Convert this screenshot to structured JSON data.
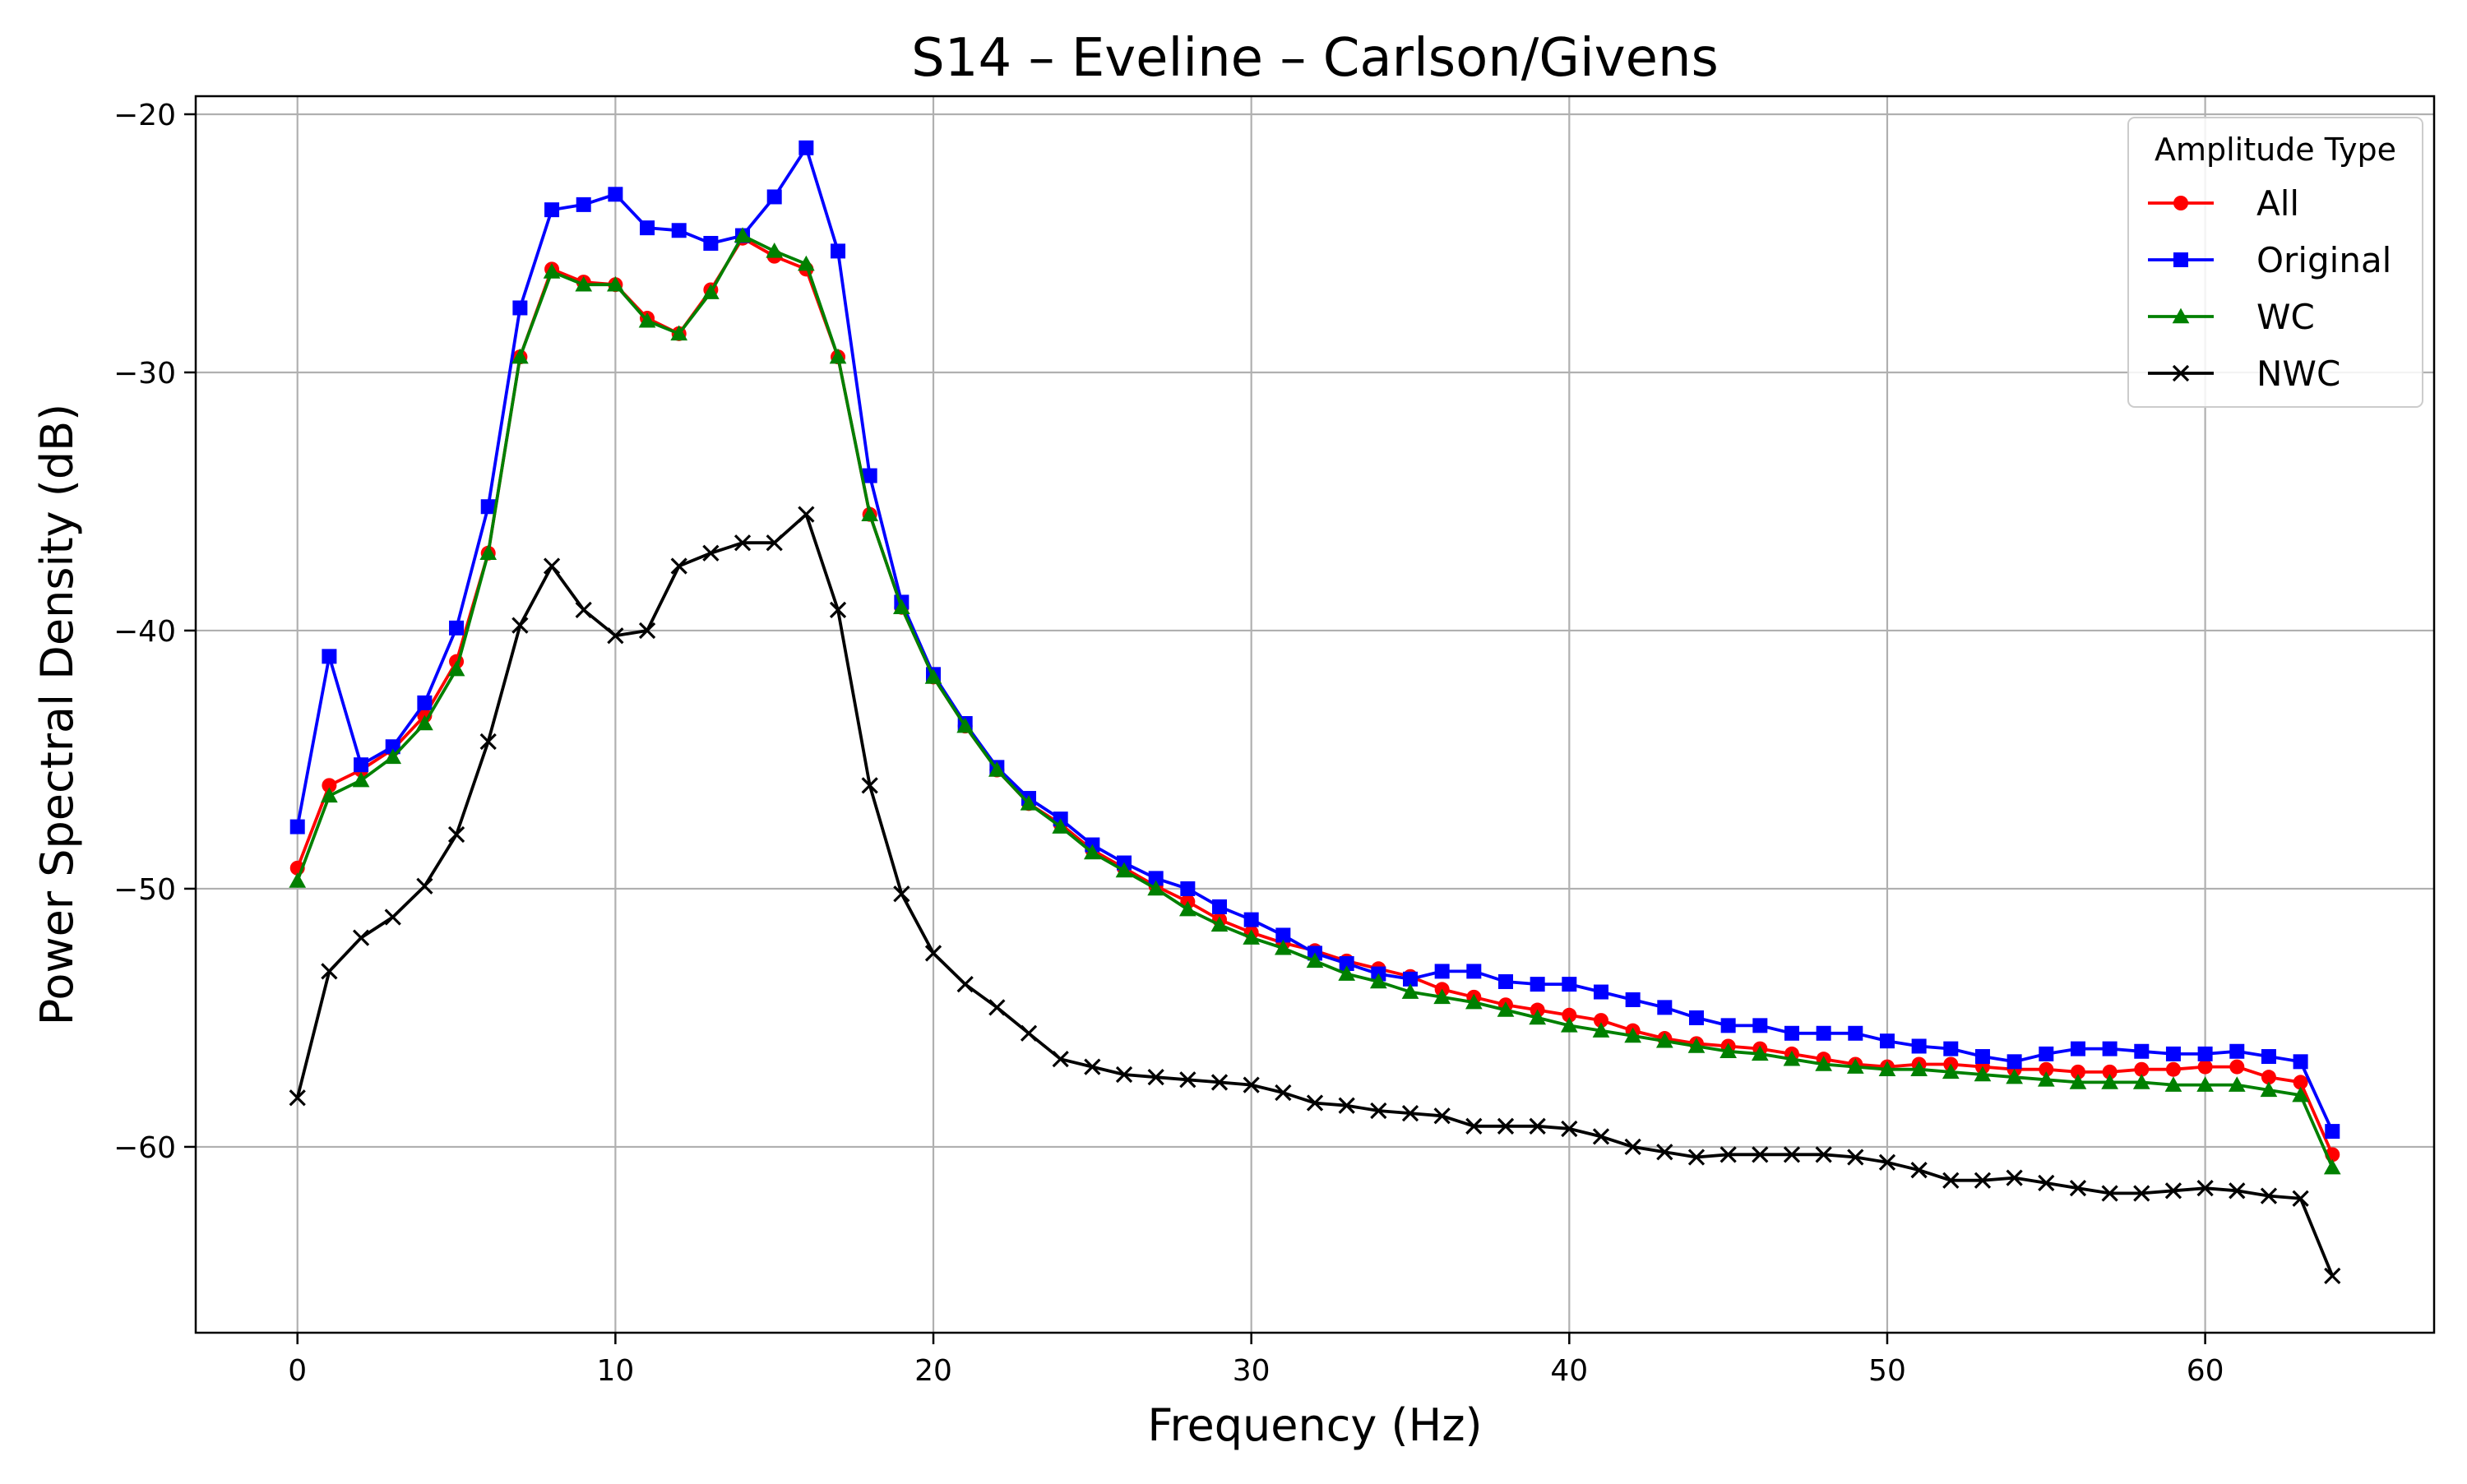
{
  "chart_data": {
    "type": "line",
    "title": "S14 – Eveline – Carlson/Givens",
    "xlabel": "Frequency (Hz)",
    "ylabel": "Power Spectral Density (dB)",
    "xlim": [
      -3.2,
      67.2
    ],
    "ylim": [
      -67.2,
      -19.3
    ],
    "xticks": [
      0,
      10,
      20,
      30,
      40,
      50,
      60
    ],
    "yticks": [
      -60,
      -50,
      -40,
      -30,
      -20
    ],
    "xtick_labels": [
      "0",
      "10",
      "20",
      "30",
      "40",
      "50",
      "60"
    ],
    "ytick_labels": [
      "−60",
      "−50",
      "−40",
      "−30",
      "−20"
    ],
    "grid": true,
    "legend": {
      "title": "Amplitude Type",
      "placement": "top-right"
    },
    "x": [
      0,
      1,
      2,
      3,
      4,
      5,
      6,
      7,
      8,
      9,
      10,
      11,
      12,
      13,
      14,
      15,
      16,
      17,
      18,
      19,
      20,
      21,
      22,
      23,
      24,
      25,
      26,
      27,
      28,
      29,
      30,
      31,
      32,
      33,
      34,
      35,
      36,
      37,
      38,
      39,
      40,
      41,
      42,
      43,
      44,
      45,
      46,
      47,
      48,
      49,
      50,
      51,
      52,
      53,
      54,
      55,
      56,
      57,
      58,
      59,
      60,
      61,
      62,
      63,
      64
    ],
    "series": [
      {
        "name": "All",
        "color": "#ff0000",
        "marker": "circle",
        "values": [
          -49.2,
          -46.0,
          -45.4,
          -44.6,
          -43.3,
          -41.2,
          -37.0,
          -29.4,
          -26.0,
          -26.5,
          -26.6,
          -27.9,
          -28.5,
          -26.8,
          -24.8,
          -25.5,
          -26.0,
          -29.4,
          -35.5,
          -39.1,
          -41.8,
          -43.7,
          -45.4,
          -46.7,
          -47.5,
          -48.5,
          -49.2,
          -49.9,
          -50.5,
          -51.2,
          -51.7,
          -52.1,
          -52.4,
          -52.8,
          -53.1,
          -53.4,
          -53.9,
          -54.2,
          -54.5,
          -54.7,
          -54.9,
          -55.1,
          -55.5,
          -55.8,
          -56.0,
          -56.1,
          -56.2,
          -56.4,
          -56.6,
          -56.8,
          -56.9,
          -56.8,
          -56.8,
          -56.9,
          -57.0,
          -57.0,
          -57.1,
          -57.1,
          -57.0,
          -57.0,
          -56.9,
          -56.9,
          -57.3,
          -57.5,
          -60.3
        ]
      },
      {
        "name": "Original",
        "color": "#0000ff",
        "marker": "square",
        "values": [
          -47.6,
          -41.0,
          -45.2,
          -44.5,
          -42.8,
          -39.9,
          -35.2,
          -27.5,
          -23.7,
          -23.5,
          -23.1,
          -24.4,
          -24.5,
          -25.0,
          -24.7,
          -23.2,
          -21.3,
          -25.3,
          -34.0,
          -38.9,
          -41.7,
          -43.6,
          -45.3,
          -46.5,
          -47.3,
          -48.3,
          -49.0,
          -49.6,
          -50.0,
          -50.7,
          -51.2,
          -51.8,
          -52.5,
          -52.9,
          -53.3,
          -53.5,
          -53.2,
          -53.2,
          -53.6,
          -53.7,
          -53.7,
          -54.0,
          -54.3,
          -54.6,
          -55.0,
          -55.3,
          -55.3,
          -55.6,
          -55.6,
          -55.6,
          -55.9,
          -56.1,
          -56.2,
          -56.5,
          -56.7,
          -56.4,
          -56.2,
          -56.2,
          -56.3,
          -56.4,
          -56.4,
          -56.3,
          -56.5,
          -56.7,
          -59.4
        ]
      },
      {
        "name": "WC",
        "color": "#008000",
        "marker": "triangle",
        "values": [
          -49.7,
          -46.4,
          -45.8,
          -44.9,
          -43.6,
          -41.5,
          -37.0,
          -29.4,
          -26.1,
          -26.6,
          -26.6,
          -28.0,
          -28.5,
          -26.9,
          -24.7,
          -25.3,
          -25.8,
          -29.4,
          -35.5,
          -39.1,
          -41.8,
          -43.7,
          -45.4,
          -46.7,
          -47.6,
          -48.6,
          -49.3,
          -50.0,
          -50.8,
          -51.4,
          -51.9,
          -52.3,
          -52.8,
          -53.3,
          -53.6,
          -54.0,
          -54.2,
          -54.4,
          -54.7,
          -55.0,
          -55.3,
          -55.5,
          -55.7,
          -55.9,
          -56.1,
          -56.3,
          -56.4,
          -56.6,
          -56.8,
          -56.9,
          -57.0,
          -57.0,
          -57.1,
          -57.2,
          -57.3,
          -57.4,
          -57.5,
          -57.5,
          -57.5,
          -57.6,
          -57.6,
          -57.6,
          -57.8,
          -58.0,
          -60.8
        ]
      },
      {
        "name": "NWC",
        "color": "#000000",
        "marker": "x",
        "values": [
          -58.1,
          -53.2,
          -51.9,
          -51.1,
          -49.9,
          -47.9,
          -44.3,
          -39.8,
          -37.5,
          -39.2,
          -40.2,
          -40.0,
          -37.5,
          -37.0,
          -36.6,
          -36.6,
          -35.5,
          -39.2,
          -46.0,
          -50.2,
          -52.5,
          -53.7,
          -54.6,
          -55.6,
          -56.6,
          -56.9,
          -57.2,
          -57.3,
          -57.4,
          -57.5,
          -57.6,
          -57.9,
          -58.3,
          -58.4,
          -58.6,
          -58.7,
          -58.8,
          -59.2,
          -59.2,
          -59.2,
          -59.3,
          -59.6,
          -60.0,
          -60.2,
          -60.4,
          -60.3,
          -60.3,
          -60.3,
          -60.3,
          -60.4,
          -60.6,
          -60.9,
          -61.3,
          -61.3,
          -61.2,
          -61.4,
          -61.6,
          -61.8,
          -61.8,
          -61.7,
          -61.6,
          -61.7,
          -61.9,
          -62.0,
          -65.0
        ]
      }
    ]
  }
}
